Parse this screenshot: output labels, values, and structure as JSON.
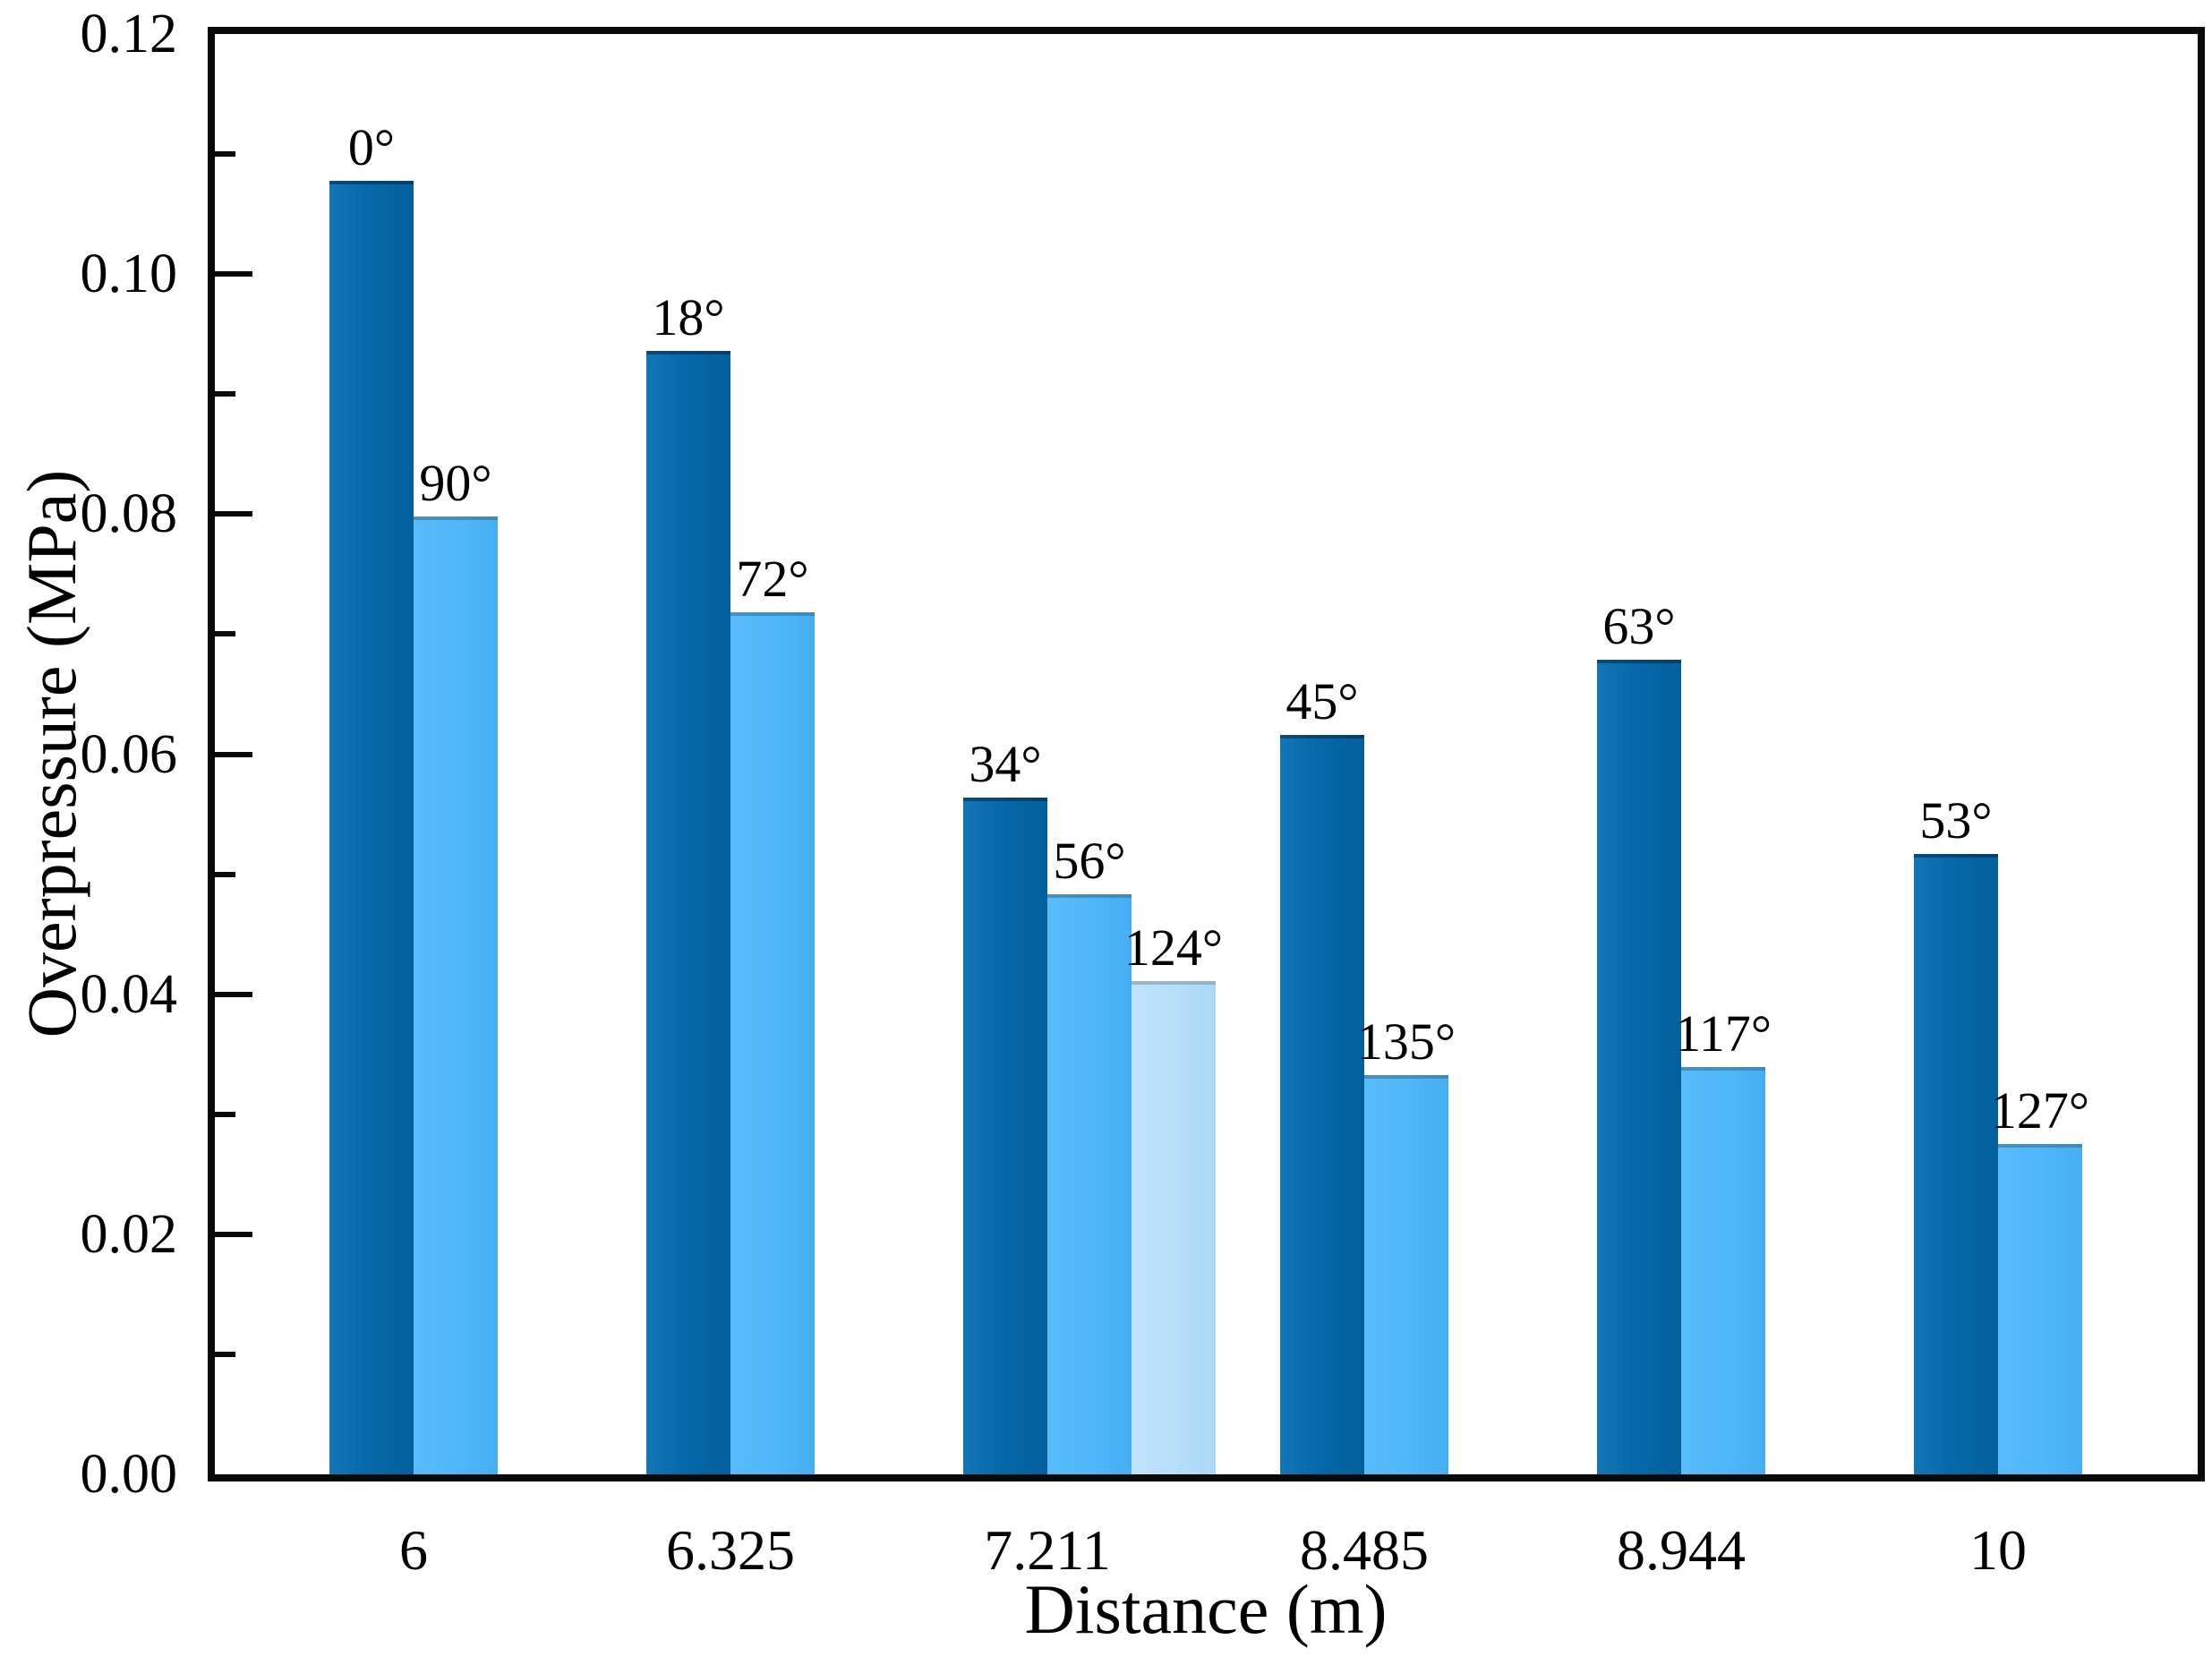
{
  "chart_data": {
    "type": "bar",
    "title": "",
    "xlabel": "Distance (m)",
    "ylabel": "Overpressure (MPa)",
    "ylim": [
      0,
      0.12
    ],
    "ytick_major_step": 0.02,
    "ytick_minor_step": 0.01,
    "ytick_labels": [
      "0.00",
      "0.02",
      "0.04",
      "0.06",
      "0.08",
      "0.10",
      "0.12"
    ],
    "grid": false,
    "frame": true,
    "legend": "none",
    "categories": [
      "6",
      "6.325",
      "7.211",
      "8.485",
      "8.944",
      "10"
    ],
    "groups": [
      {
        "category": "6",
        "bars": [
          {
            "label": "0°",
            "value": 0.1075,
            "series": "dark"
          },
          {
            "label": "90°",
            "value": 0.0795,
            "series": "medium"
          }
        ]
      },
      {
        "category": "6.325",
        "bars": [
          {
            "label": "18°",
            "value": 0.0933,
            "series": "dark"
          },
          {
            "label": "72°",
            "value": 0.0715,
            "series": "medium"
          }
        ]
      },
      {
        "category": "7.211",
        "bars": [
          {
            "label": "34°",
            "value": 0.0561,
            "series": "dark"
          },
          {
            "label": "56°",
            "value": 0.048,
            "series": "medium"
          },
          {
            "label": "124°",
            "value": 0.0408,
            "series": "light"
          }
        ]
      },
      {
        "category": "8.485",
        "bars": [
          {
            "label": "45°",
            "value": 0.0613,
            "series": "dark"
          },
          {
            "label": "135°",
            "value": 0.033,
            "series": "medium"
          }
        ]
      },
      {
        "category": "8.944",
        "bars": [
          {
            "label": "63°",
            "value": 0.0676,
            "series": "dark"
          },
          {
            "label": "117°",
            "value": 0.0336,
            "series": "medium"
          }
        ]
      },
      {
        "category": "10",
        "bars": [
          {
            "label": "53°",
            "value": 0.0514,
            "series": "dark"
          },
          {
            "label": "127°",
            "value": 0.0272,
            "series": "medium"
          }
        ]
      }
    ],
    "series_colors": {
      "dark": "#0569a9",
      "medium": "#4fb8fa",
      "light": "#b5dff8"
    },
    "axis_color": "#0a0a0a"
  }
}
